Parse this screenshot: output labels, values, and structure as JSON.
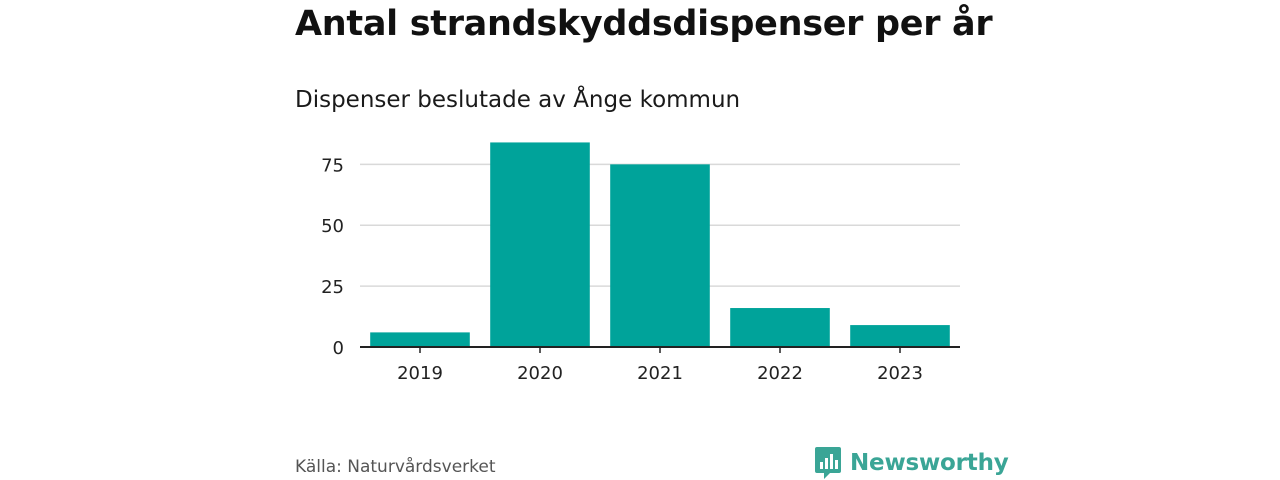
{
  "header": {
    "title": "Antal strandskyddsdispenser per år",
    "subtitle": "Dispenser beslutade av Ånge kommun"
  },
  "footer": {
    "source": "Källa: Naturvårdsverket",
    "brand": "Newsworthy",
    "brand_icon": "newsworthy-logo-icon"
  },
  "colors": {
    "bar": "#00a39a",
    "grid": "#d9d9d9",
    "axis": "#222222",
    "brand": "#3aa596"
  },
  "chart_data": {
    "type": "bar",
    "title": "Antal strandskyddsdispenser per år",
    "subtitle": "Dispenser beslutade av Ånge kommun",
    "xlabel": "",
    "ylabel": "",
    "categories": [
      "2019",
      "2020",
      "2021",
      "2022",
      "2023"
    ],
    "values": [
      6,
      84,
      75,
      16,
      9
    ],
    "yticks": [
      0,
      25,
      50,
      75
    ],
    "ylim": [
      0,
      85
    ],
    "grid": true,
    "legend": "none"
  }
}
